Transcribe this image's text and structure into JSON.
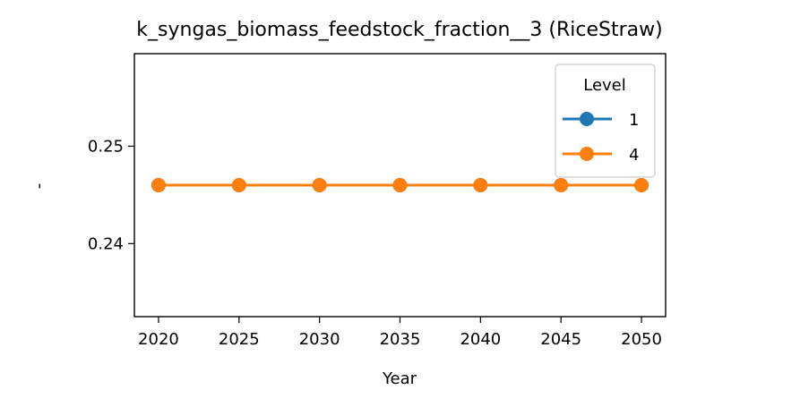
{
  "chart_data": {
    "type": "line",
    "title": "k_syngas_biomass_feedstock_fraction__3 (RiceStraw)",
    "xlabel": "Year",
    "ylabel": "-",
    "x": [
      2020,
      2025,
      2030,
      2035,
      2040,
      2045,
      2050
    ],
    "xticks": [
      "2020",
      "2025",
      "2030",
      "2035",
      "2040",
      "2045",
      "2050"
    ],
    "yticks": [
      "0.24",
      "0.25"
    ],
    "ylim": [
      0.2325,
      0.2595
    ],
    "xlim": [
      2018.5,
      2051.5
    ],
    "grid": false,
    "legend": {
      "title": "Level",
      "placement": "top-right"
    },
    "series": [
      {
        "name": "1",
        "color": "#1f77b4",
        "values": [
          0.246,
          0.246,
          0.246,
          0.246,
          0.246,
          0.246,
          0.246
        ]
      },
      {
        "name": "4",
        "color": "#ff7f0e",
        "values": [
          0.246,
          0.246,
          0.246,
          0.246,
          0.246,
          0.246,
          0.246
        ]
      }
    ]
  }
}
